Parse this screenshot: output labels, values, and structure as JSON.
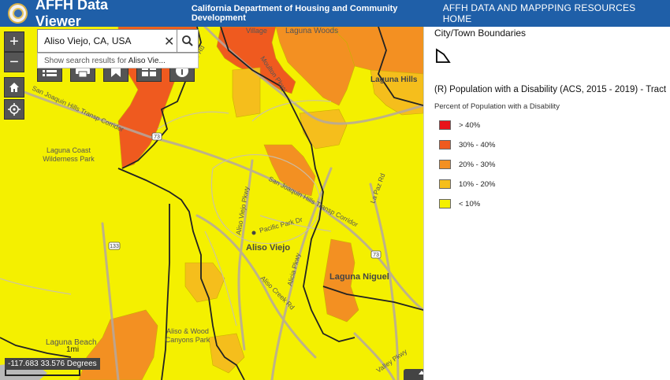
{
  "header": {
    "app_title": "AFFH Data Viewer",
    "department": "California Department of Housing and Community Development",
    "home_link": "AFFH DATA AND MAPPPING RESOURCES HOME",
    "logo_icon": "state-seal-icon",
    "background_color": "#1f5fa8"
  },
  "search": {
    "value": "Aliso Viejo, CA, USA",
    "clear_icon": "close-icon",
    "search_icon": "search-icon",
    "suggestion_prefix": "Show search results for ",
    "suggestion_term": "Aliso Vie..."
  },
  "map_controls": {
    "zoom_in": "+",
    "zoom_out": "−",
    "home_icon": "home-icon",
    "locate_icon": "locate-icon",
    "toolbar_icons": [
      "list-icon",
      "print-icon",
      "bookmark-icon",
      "basemap-gallery-icon",
      "info-icon"
    ]
  },
  "map_labels": {
    "village": "Village",
    "laguna_woods": "Laguna Woods",
    "moulton_pkwy": "Moulton Pkwy",
    "laguna_hills": "Laguna Hills",
    "san_joaquin_corridor_nw": "San Joaquin Hills Transp Corridor",
    "el_toro": "El Toro Rd",
    "coast_wilderness": "Laguna Coast Wilderness Park",
    "route_73_a": "73",
    "route_73_b": "73",
    "route_133": "133",
    "sj_corridor_mid": "San Joaquin Hills Transp Corridor",
    "aliso_viejo_pkwy": "Aliso Viejo Pkwy",
    "pacific_park": "Pacific Park Dr",
    "aliso_viejo": "Aliso Viejo",
    "aliso_creek": "Aliso Creek Rd",
    "alicia_pkwy": "Alicia Pkwy",
    "la_paz": "La Paz Rd",
    "laguna_niguel": "Laguna Niguel",
    "aliso_wood": "Aliso & Wood Canyons Park",
    "laguna_beach": "Laguna Beach",
    "valley_pkwy": "Valley Pkwy"
  },
  "scale": {
    "label": "1mi"
  },
  "coordinates": {
    "text": "-117.683 33.576 Degrees"
  },
  "legend": {
    "boundaries_title": "City/Town Boundaries",
    "layer_title": "(R) Population with a Disability (ACS, 2015 - 2019) - Tract",
    "subtitle": "Percent of Population with a Disability",
    "items": [
      {
        "label": "> 40%",
        "color": "#e8131a"
      },
      {
        "label": "30% - 40%",
        "color": "#ef5a1f"
      },
      {
        "label": "20% - 30%",
        "color": "#f39022"
      },
      {
        "label": "10% - 20%",
        "color": "#f5be1c"
      },
      {
        "label": "< 10%",
        "color": "#f4f000"
      }
    ]
  }
}
